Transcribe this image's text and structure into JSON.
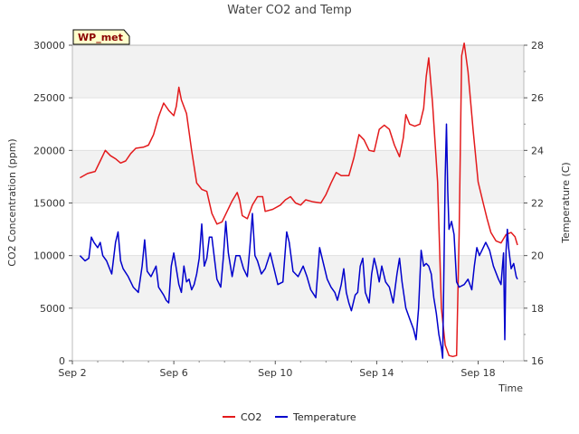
{
  "chart_data": {
    "type": "line",
    "title": "Water CO2 and Temp",
    "site_badge": "WP_met",
    "xlabel": "Time",
    "ylabel": "CO2 Concentration (ppm)",
    "y2label": "Temperature (C)",
    "xlim": [
      2.0,
      19.8
    ],
    "ylim": [
      0,
      30000
    ],
    "y2lim": [
      16,
      28
    ],
    "x_ticks": [
      {
        "x": 2,
        "label": "Sep 2"
      },
      {
        "x": 6,
        "label": "Sep 6"
      },
      {
        "x": 10,
        "label": "Sep 10"
      },
      {
        "x": 14,
        "label": "Sep 14"
      },
      {
        "x": 18,
        "label": "Sep 18"
      }
    ],
    "y_ticks": [
      0,
      5000,
      10000,
      15000,
      20000,
      25000,
      30000
    ],
    "y2_ticks": [
      16,
      18,
      20,
      22,
      24,
      26,
      28
    ],
    "grid": "horizontal bands",
    "legend_position": "bottom",
    "series": [
      {
        "name": "CO2",
        "axis": "left",
        "color": "#e31a1c",
        "points": [
          [
            2.3,
            17400
          ],
          [
            2.6,
            17800
          ],
          [
            2.9,
            18000
          ],
          [
            3.1,
            19000
          ],
          [
            3.2,
            19500
          ],
          [
            3.3,
            20000
          ],
          [
            3.5,
            19500
          ],
          [
            3.7,
            19200
          ],
          [
            3.9,
            18800
          ],
          [
            4.1,
            19000
          ],
          [
            4.3,
            19700
          ],
          [
            4.5,
            20200
          ],
          [
            4.8,
            20300
          ],
          [
            5.0,
            20500
          ],
          [
            5.2,
            21500
          ],
          [
            5.4,
            23200
          ],
          [
            5.6,
            24500
          ],
          [
            5.8,
            23800
          ],
          [
            6.0,
            23300
          ],
          [
            6.1,
            24200
          ],
          [
            6.2,
            26000
          ],
          [
            6.3,
            24800
          ],
          [
            6.5,
            23500
          ],
          [
            6.7,
            20000
          ],
          [
            6.9,
            16900
          ],
          [
            7.1,
            16300
          ],
          [
            7.3,
            16100
          ],
          [
            7.5,
            14000
          ],
          [
            7.7,
            13000
          ],
          [
            7.9,
            13200
          ],
          [
            8.1,
            14200
          ],
          [
            8.3,
            15200
          ],
          [
            8.5,
            16000
          ],
          [
            8.6,
            15200
          ],
          [
            8.7,
            13800
          ],
          [
            8.9,
            13500
          ],
          [
            9.1,
            14800
          ],
          [
            9.3,
            15600
          ],
          [
            9.5,
            15600
          ],
          [
            9.6,
            14200
          ],
          [
            9.9,
            14400
          ],
          [
            10.2,
            14800
          ],
          [
            10.4,
            15300
          ],
          [
            10.6,
            15600
          ],
          [
            10.8,
            15000
          ],
          [
            11.0,
            14800
          ],
          [
            11.2,
            15300
          ],
          [
            11.5,
            15100
          ],
          [
            11.8,
            15000
          ],
          [
            12.0,
            15800
          ],
          [
            12.2,
            16900
          ],
          [
            12.4,
            17900
          ],
          [
            12.6,
            17600
          ],
          [
            12.9,
            17600
          ],
          [
            13.1,
            19300
          ],
          [
            13.3,
            21500
          ],
          [
            13.5,
            21000
          ],
          [
            13.7,
            20000
          ],
          [
            13.9,
            19900
          ],
          [
            14.1,
            22000
          ],
          [
            14.3,
            22400
          ],
          [
            14.5,
            22000
          ],
          [
            14.7,
            20500
          ],
          [
            14.9,
            19400
          ],
          [
            15.05,
            21200
          ],
          [
            15.15,
            23400
          ],
          [
            15.3,
            22500
          ],
          [
            15.5,
            22300
          ],
          [
            15.7,
            22500
          ],
          [
            15.85,
            24000
          ],
          [
            15.95,
            27000
          ],
          [
            16.05,
            28800
          ],
          [
            16.2,
            24500
          ],
          [
            16.4,
            17000
          ],
          [
            16.55,
            5000
          ],
          [
            16.7,
            1500
          ],
          [
            16.85,
            500
          ],
          [
            17.0,
            400
          ],
          [
            17.15,
            500
          ],
          [
            17.25,
            12000
          ],
          [
            17.35,
            29000
          ],
          [
            17.45,
            30200
          ],
          [
            17.6,
            27500
          ],
          [
            17.8,
            22000
          ],
          [
            18.0,
            17000
          ],
          [
            18.2,
            15000
          ],
          [
            18.35,
            13500
          ],
          [
            18.5,
            12200
          ],
          [
            18.7,
            11400
          ],
          [
            18.9,
            11200
          ],
          [
            19.1,
            12000
          ],
          [
            19.3,
            12200
          ],
          [
            19.45,
            11800
          ],
          [
            19.55,
            11000
          ]
        ]
      },
      {
        "name": "Temperature",
        "axis": "right",
        "color": "#0000cc",
        "points": [
          [
            2.3,
            20.0
          ],
          [
            2.5,
            19.8
          ],
          [
            2.65,
            19.9
          ],
          [
            2.75,
            20.7
          ],
          [
            2.85,
            20.5
          ],
          [
            3.0,
            20.3
          ],
          [
            3.1,
            20.5
          ],
          [
            3.2,
            20.0
          ],
          [
            3.35,
            19.8
          ],
          [
            3.55,
            19.3
          ],
          [
            3.7,
            20.5
          ],
          [
            3.8,
            20.9
          ],
          [
            3.9,
            19.8
          ],
          [
            4.0,
            19.5
          ],
          [
            4.2,
            19.2
          ],
          [
            4.4,
            18.8
          ],
          [
            4.6,
            18.6
          ],
          [
            4.75,
            19.6
          ],
          [
            4.85,
            20.6
          ],
          [
            4.95,
            19.4
          ],
          [
            5.1,
            19.2
          ],
          [
            5.3,
            19.6
          ],
          [
            5.4,
            18.8
          ],
          [
            5.6,
            18.5
          ],
          [
            5.7,
            18.3
          ],
          [
            5.8,
            18.2
          ],
          [
            5.9,
            19.6
          ],
          [
            6.0,
            20.1
          ],
          [
            6.1,
            19.5
          ],
          [
            6.2,
            18.9
          ],
          [
            6.3,
            18.6
          ],
          [
            6.4,
            19.6
          ],
          [
            6.5,
            19.0
          ],
          [
            6.6,
            19.1
          ],
          [
            6.7,
            18.7
          ],
          [
            6.8,
            18.9
          ],
          [
            6.9,
            19.3
          ],
          [
            7.0,
            19.9
          ],
          [
            7.1,
            21.2
          ],
          [
            7.2,
            19.6
          ],
          [
            7.3,
            19.9
          ],
          [
            7.4,
            20.7
          ],
          [
            7.5,
            20.7
          ],
          [
            7.6,
            19.9
          ],
          [
            7.7,
            19.1
          ],
          [
            7.85,
            18.8
          ],
          [
            7.95,
            19.9
          ],
          [
            8.05,
            21.3
          ],
          [
            8.15,
            20.1
          ],
          [
            8.3,
            19.2
          ],
          [
            8.45,
            20.0
          ],
          [
            8.6,
            20.0
          ],
          [
            8.75,
            19.5
          ],
          [
            8.9,
            19.2
          ],
          [
            9.0,
            20.3
          ],
          [
            9.1,
            21.6
          ],
          [
            9.2,
            20.0
          ],
          [
            9.3,
            19.8
          ],
          [
            9.45,
            19.3
          ],
          [
            9.6,
            19.5
          ],
          [
            9.8,
            20.1
          ],
          [
            9.95,
            19.5
          ],
          [
            10.1,
            18.9
          ],
          [
            10.3,
            19.0
          ],
          [
            10.45,
            20.9
          ],
          [
            10.55,
            20.5
          ],
          [
            10.7,
            19.4
          ],
          [
            10.9,
            19.2
          ],
          [
            11.1,
            19.6
          ],
          [
            11.25,
            19.2
          ],
          [
            11.4,
            18.7
          ],
          [
            11.6,
            18.4
          ],
          [
            11.75,
            20.3
          ],
          [
            11.9,
            19.7
          ],
          [
            12.05,
            19.1
          ],
          [
            12.2,
            18.8
          ],
          [
            12.35,
            18.6
          ],
          [
            12.45,
            18.3
          ],
          [
            12.6,
            18.9
          ],
          [
            12.7,
            19.5
          ],
          [
            12.8,
            18.6
          ],
          [
            12.9,
            18.2
          ],
          [
            13.0,
            17.9
          ],
          [
            13.15,
            18.5
          ],
          [
            13.25,
            18.6
          ],
          [
            13.35,
            19.6
          ],
          [
            13.45,
            19.9
          ],
          [
            13.55,
            18.6
          ],
          [
            13.7,
            18.2
          ],
          [
            13.8,
            19.3
          ],
          [
            13.9,
            19.9
          ],
          [
            14.0,
            19.5
          ],
          [
            14.1,
            19.0
          ],
          [
            14.2,
            19.6
          ],
          [
            14.35,
            19.0
          ],
          [
            14.5,
            18.8
          ],
          [
            14.65,
            18.2
          ],
          [
            14.8,
            19.3
          ],
          [
            14.9,
            19.9
          ],
          [
            15.0,
            19.0
          ],
          [
            15.15,
            18.0
          ],
          [
            15.3,
            17.6
          ],
          [
            15.45,
            17.2
          ],
          [
            15.55,
            16.8
          ],
          [
            15.65,
            18.0
          ],
          [
            15.75,
            20.2
          ],
          [
            15.85,
            19.6
          ],
          [
            15.95,
            19.7
          ],
          [
            16.05,
            19.6
          ],
          [
            16.15,
            19.3
          ],
          [
            16.25,
            18.4
          ],
          [
            16.35,
            17.8
          ],
          [
            16.45,
            17.0
          ],
          [
            16.55,
            16.5
          ],
          [
            16.6,
            16.1
          ],
          [
            16.65,
            19.5
          ],
          [
            16.7,
            23.0
          ],
          [
            16.75,
            25.0
          ],
          [
            16.8,
            22.5
          ],
          [
            16.85,
            21.0
          ],
          [
            16.95,
            21.3
          ],
          [
            17.05,
            20.8
          ],
          [
            17.15,
            19.0
          ],
          [
            17.25,
            18.8
          ],
          [
            17.45,
            18.9
          ],
          [
            17.6,
            19.1
          ],
          [
            17.75,
            18.7
          ],
          [
            17.85,
            19.6
          ],
          [
            17.95,
            20.3
          ],
          [
            18.05,
            20.0
          ],
          [
            18.15,
            20.2
          ],
          [
            18.3,
            20.5
          ],
          [
            18.45,
            20.2
          ],
          [
            18.6,
            19.6
          ],
          [
            18.8,
            19.1
          ],
          [
            18.9,
            18.9
          ],
          [
            19.0,
            20.1
          ],
          [
            19.05,
            16.8
          ],
          [
            19.1,
            20.2
          ],
          [
            19.15,
            21.0
          ],
          [
            19.2,
            20.3
          ],
          [
            19.3,
            19.5
          ],
          [
            19.4,
            19.7
          ],
          [
            19.5,
            19.2
          ],
          [
            19.55,
            19.1
          ]
        ]
      }
    ]
  }
}
